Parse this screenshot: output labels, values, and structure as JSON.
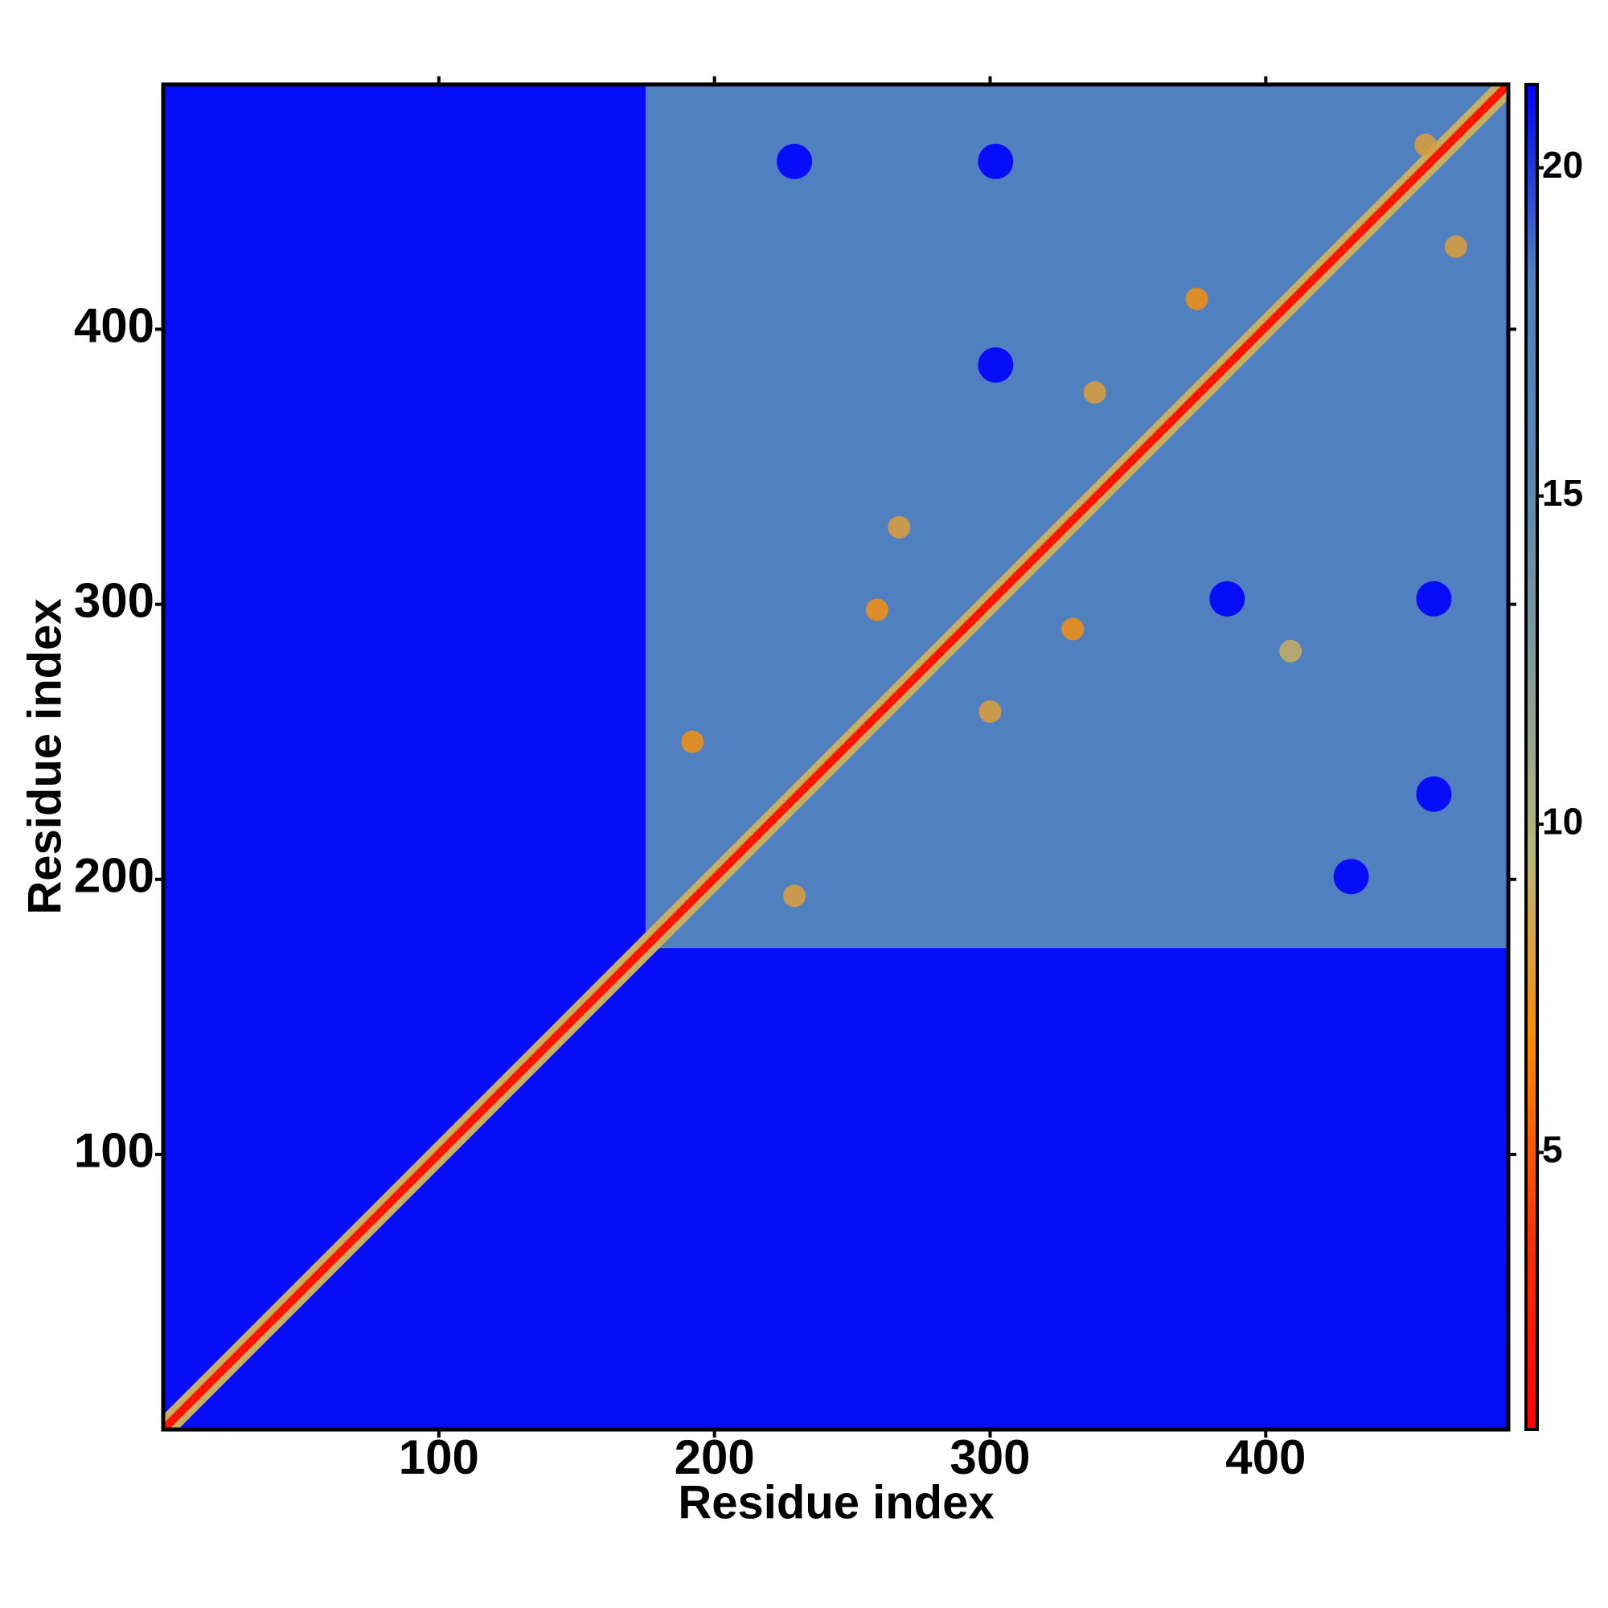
{
  "chart_data": {
    "type": "heatmap",
    "xlabel": "Residue index",
    "ylabel": "Residue index",
    "xlim": [
      0,
      488
    ],
    "ylim": [
      0,
      489
    ],
    "xticks": [
      100,
      200,
      300,
      400
    ],
    "yticks": [
      100,
      200,
      300,
      400
    ],
    "background": 21,
    "regions": [
      {
        "x": [
          175,
          488
        ],
        "y": [
          175,
          489
        ],
        "value": 18
      }
    ],
    "diagonal": {
      "x": [
        0,
        488
      ],
      "y": [
        0,
        489
      ],
      "value": 2
    },
    "points": {
      "x": [
        267,
        259,
        300,
        330,
        229,
        192,
        338,
        375,
        458,
        469,
        409,
        229,
        302,
        386,
        461,
        302,
        461,
        431
      ],
      "y": [
        328,
        298,
        261,
        291,
        194,
        250,
        377,
        411,
        467,
        430,
        283,
        461,
        461,
        302,
        231,
        387,
        302,
        201
      ],
      "values": [
        8,
        7,
        8,
        7,
        8,
        7,
        8,
        7,
        8,
        8,
        9,
        21,
        21,
        21,
        21,
        21,
        21,
        21
      ]
    },
    "colorbar": {
      "lim": [
        0.78,
        21.27
      ],
      "ticks": [
        5,
        10,
        15,
        20
      ],
      "colors": [
        "#ff0000",
        "#ff3000",
        "#ff8800",
        "#b8b878",
        "#7e9a9a",
        "#5a86b4",
        "#4f7fc0",
        "#0000ff"
      ]
    }
  }
}
